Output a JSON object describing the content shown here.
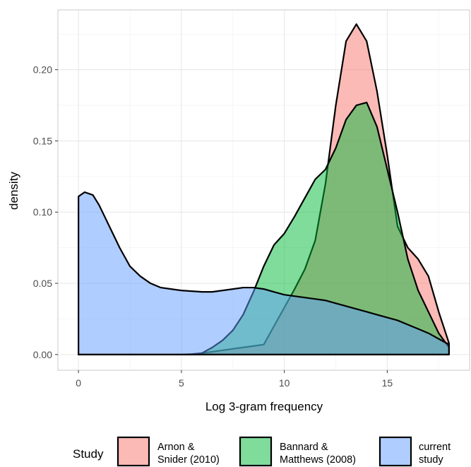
{
  "chart_data": {
    "type": "area",
    "title": "",
    "xlabel": "Log 3-gram frequency",
    "ylabel": "density",
    "xlim": [
      -1,
      19
    ],
    "ylim": [
      -0.011,
      0.242
    ],
    "x_ticks": [
      0,
      5,
      10,
      15
    ],
    "x_tick_labels": [
      "0",
      "5",
      "10",
      "15"
    ],
    "y_ticks": [
      0,
      0.05,
      0.1,
      0.15,
      0.2
    ],
    "y_tick_labels": [
      "0.00",
      "0.05",
      "0.10",
      "0.15",
      "0.20"
    ],
    "grid": true,
    "legend": {
      "title": "Study",
      "position": "bottom"
    },
    "series": [
      {
        "name": "Arnon & Snider (2010)",
        "legend_lines": [
          "Arnon &",
          "Snider (2010)"
        ],
        "color": "#F8766D",
        "x": [
          0,
          5,
          5.5,
          6,
          6.5,
          7,
          7.5,
          8,
          8.5,
          9,
          9.5,
          10,
          10.5,
          11,
          11.5,
          12,
          12.5,
          13,
          13.5,
          14,
          14.5,
          15,
          15.5,
          16,
          16.5,
          17,
          17.5,
          18
        ],
        "y": [
          0,
          0,
          0.0003,
          0.001,
          0.002,
          0.003,
          0.004,
          0.005,
          0.006,
          0.007,
          0.02,
          0.033,
          0.046,
          0.06,
          0.08,
          0.12,
          0.175,
          0.22,
          0.232,
          0.22,
          0.185,
          0.14,
          0.09,
          0.075,
          0.067,
          0.055,
          0.03,
          0.008
        ]
      },
      {
        "name": "Bannard & Matthews (2008)",
        "legend_lines": [
          "Bannard &",
          "Matthews (2008)"
        ],
        "color": "#00BA38",
        "x": [
          0,
          5.5,
          6,
          6.5,
          7,
          7.5,
          8,
          8.5,
          9,
          9.5,
          10,
          10.5,
          11,
          11.5,
          12,
          12.5,
          13,
          13.5,
          14,
          14.5,
          15,
          15.5,
          16,
          16.5,
          17,
          17.5,
          18
        ],
        "y": [
          0,
          0,
          0.001,
          0.005,
          0.01,
          0.017,
          0.028,
          0.044,
          0.062,
          0.077,
          0.085,
          0.097,
          0.11,
          0.123,
          0.13,
          0.145,
          0.165,
          0.175,
          0.177,
          0.16,
          0.13,
          0.1,
          0.067,
          0.045,
          0.03,
          0.015,
          0.005
        ]
      },
      {
        "name": "current study",
        "legend_lines": [
          "current",
          "study"
        ],
        "color": "#619CFF",
        "x": [
          0,
          0.3,
          0.7,
          1,
          1.5,
          2,
          2.5,
          3,
          3.5,
          4,
          4.5,
          5,
          5.5,
          6,
          6.5,
          7,
          7.5,
          8,
          8.5,
          9,
          9.5,
          10,
          10.5,
          11,
          11.5,
          12,
          12.5,
          13,
          13.5,
          14,
          14.5,
          15,
          15.5,
          16,
          16.5,
          17,
          17.5,
          18
        ],
        "y": [
          0.111,
          0.114,
          0.112,
          0.105,
          0.09,
          0.075,
          0.062,
          0.055,
          0.05,
          0.047,
          0.046,
          0.045,
          0.0445,
          0.044,
          0.044,
          0.045,
          0.046,
          0.047,
          0.047,
          0.046,
          0.044,
          0.042,
          0.041,
          0.04,
          0.039,
          0.038,
          0.036,
          0.034,
          0.032,
          0.03,
          0.028,
          0.026,
          0.024,
          0.021,
          0.018,
          0.015,
          0.011,
          0.007
        ]
      }
    ]
  }
}
